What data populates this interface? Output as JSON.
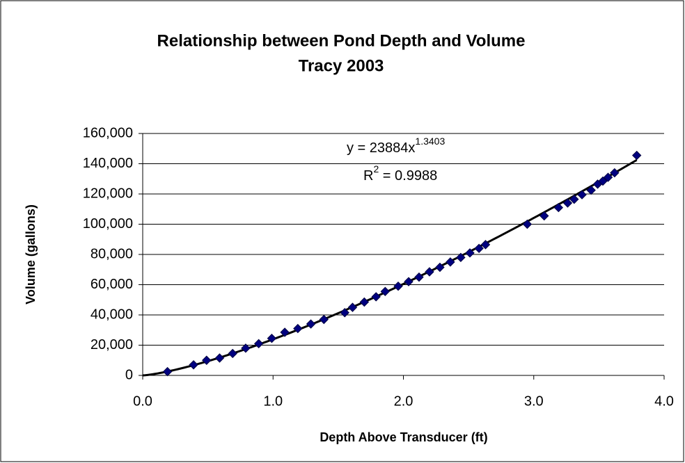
{
  "chart_data": {
    "type": "scatter",
    "title": [
      "Relationship between Pond Depth and Volume",
      "Tracy 2003"
    ],
    "x_label": "Depth Above Transducer (ft)",
    "y_label": "Volume (gallons)",
    "annotations": {
      "equation": "y = 23884x",
      "exponent": "1.3403",
      "r_symbol": "R",
      "r_power": "2",
      "r_value": " = 0.9988"
    },
    "trendline": "power",
    "color": "#000080",
    "grid": true,
    "xlim": [
      0,
      4
    ],
    "ylim": [
      0,
      160000
    ],
    "xticks": [
      {
        "value": 0,
        "label": "0.0"
      },
      {
        "value": 1,
        "label": "1.0"
      },
      {
        "value": 2,
        "label": "2.0"
      },
      {
        "value": 3,
        "label": "3.0"
      },
      {
        "value": 4,
        "label": "4.0"
      }
    ],
    "yticks": [
      0,
      {
        "value": 20000,
        "label": "20,000"
      },
      {
        "value": 40000,
        "label": "40,000"
      },
      {
        "value": 60000,
        "label": "60,000"
      },
      {
        "value": 80000,
        "label": "80,000"
      },
      {
        "value": 100000,
        "label": "100,000"
      },
      {
        "value": 120000,
        "label": "120,000"
      },
      {
        "value": 140000,
        "label": "140,000"
      },
      {
        "value": 160000,
        "label": "160,000"
      }
    ],
    "x": [
      0.19,
      0.39,
      0.49,
      0.59,
      0.69,
      0.79,
      0.89,
      0.99,
      1.09,
      1.19,
      1.29,
      1.39,
      1.55,
      1.61,
      1.7,
      1.79,
      1.86,
      1.96,
      2.04,
      2.12,
      2.2,
      2.28,
      2.36,
      2.44,
      2.51,
      2.58,
      2.63,
      2.95,
      3.08,
      3.19,
      3.26,
      3.31,
      3.37,
      3.44,
      3.49,
      3.53,
      3.57,
      3.62,
      3.79
    ],
    "values": [
      2500,
      7000,
      10000,
      11500,
      14500,
      18000,
      21000,
      24500,
      28500,
      31000,
      34000,
      37000,
      41500,
      45000,
      48500,
      52000,
      55500,
      59000,
      62000,
      65000,
      68500,
      71500,
      75000,
      78000,
      81000,
      84000,
      86500,
      100000,
      105500,
      111000,
      114000,
      116500,
      119500,
      122500,
      126500,
      128500,
      131000,
      134000,
      145500
    ]
  }
}
